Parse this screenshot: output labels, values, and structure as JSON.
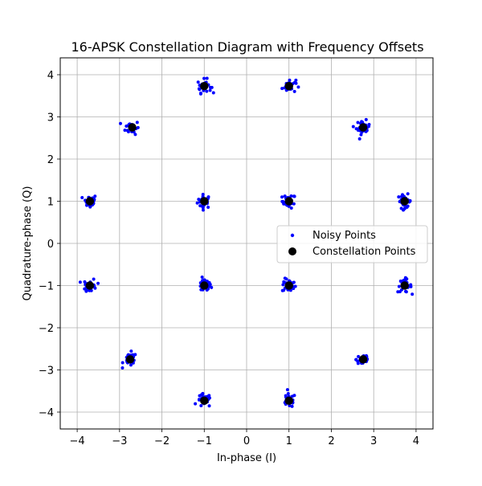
{
  "chart_data": {
    "type": "scatter",
    "title": "16-APSK Constellation Diagram with Frequency Offsets",
    "xlabel": "In-phase (I)",
    "ylabel": "Quadrature-phase (Q)",
    "xlim": [
      -4.4,
      4.4
    ],
    "ylim": [
      -4.4,
      4.4
    ],
    "xticks": [
      -4,
      -3,
      -2,
      -1,
      0,
      1,
      2,
      3,
      4
    ],
    "yticks": [
      -4,
      -3,
      -2,
      -1,
      0,
      1,
      2,
      3,
      4
    ],
    "xtick_labels": [
      "−4",
      "−3",
      "−2",
      "−1",
      "0",
      "1",
      "2",
      "3",
      "4"
    ],
    "ytick_labels": [
      "−4",
      "−3",
      "−2",
      "−1",
      "0",
      "1",
      "2",
      "3",
      "4"
    ],
    "grid": true,
    "legend_position": "center-right",
    "series": [
      {
        "name": "Noisy Points",
        "color": "#0000ff",
        "marker": "small-dot",
        "spread_x": 0.08,
        "spread_y": 0.08,
        "points_per_symbol": 30,
        "centers": [
          [
            -1,
            1
          ],
          [
            1,
            1
          ],
          [
            -1,
            -1
          ],
          [
            1,
            -1
          ],
          [
            -3.7,
            1
          ],
          [
            -2.7,
            2.75
          ],
          [
            -1,
            3.73
          ],
          [
            1,
            3.73
          ],
          [
            2.75,
            2.75
          ],
          [
            3.73,
            1
          ],
          [
            3.73,
            -1
          ],
          [
            2.75,
            -2.75
          ],
          [
            1,
            -3.73
          ],
          [
            -1,
            -3.73
          ],
          [
            -2.75,
            -2.75
          ],
          [
            -3.7,
            -1
          ]
        ]
      },
      {
        "name": "Constellation Points",
        "color": "#000000",
        "marker": "large-dot",
        "points": [
          [
            -1,
            1
          ],
          [
            1,
            1
          ],
          [
            -1,
            -1
          ],
          [
            1,
            -1
          ],
          [
            -3.7,
            1
          ],
          [
            -2.7,
            2.75
          ],
          [
            -1,
            3.73
          ],
          [
            1,
            3.73
          ],
          [
            2.75,
            2.75
          ],
          [
            3.73,
            1
          ],
          [
            3.73,
            -1
          ],
          [
            2.75,
            -2.75
          ],
          [
            1,
            -3.73
          ],
          [
            -1,
            -3.73
          ],
          [
            -2.75,
            -2.75
          ],
          [
            -3.7,
            -1
          ]
        ]
      }
    ]
  }
}
